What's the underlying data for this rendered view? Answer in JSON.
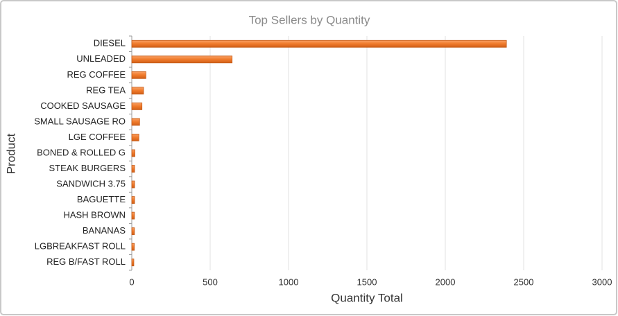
{
  "chart_data": {
    "type": "bar",
    "orientation": "horizontal",
    "title": "Top Sellers by Quantity",
    "x_label": "Quantity Total",
    "y_label": "Product",
    "categories": [
      "DIESEL",
      "UNLEADED",
      "REG COFFEE",
      "REG TEA",
      "COOKED SAUSAGE",
      "SMALL SAUSAGE RO",
      "LGE COFFEE",
      "BONED & ROLLED G",
      "STEAK BURGERS",
      "SANDWICH 3.75",
      "BAGUETTE",
      "HASH BROWN",
      "BANANAS",
      "LGBREAKFAST ROLL",
      "REG B/FAST ROLL"
    ],
    "values": [
      2390,
      640,
      90,
      75,
      65,
      50,
      45,
      20,
      18,
      18,
      18,
      17,
      17,
      16,
      13
    ],
    "color": "#f07a2a",
    "xlim": [
      0,
      3000
    ],
    "xticks": [
      0,
      500,
      1000,
      1500,
      2000,
      2500,
      3000
    ],
    "grid": true
  }
}
